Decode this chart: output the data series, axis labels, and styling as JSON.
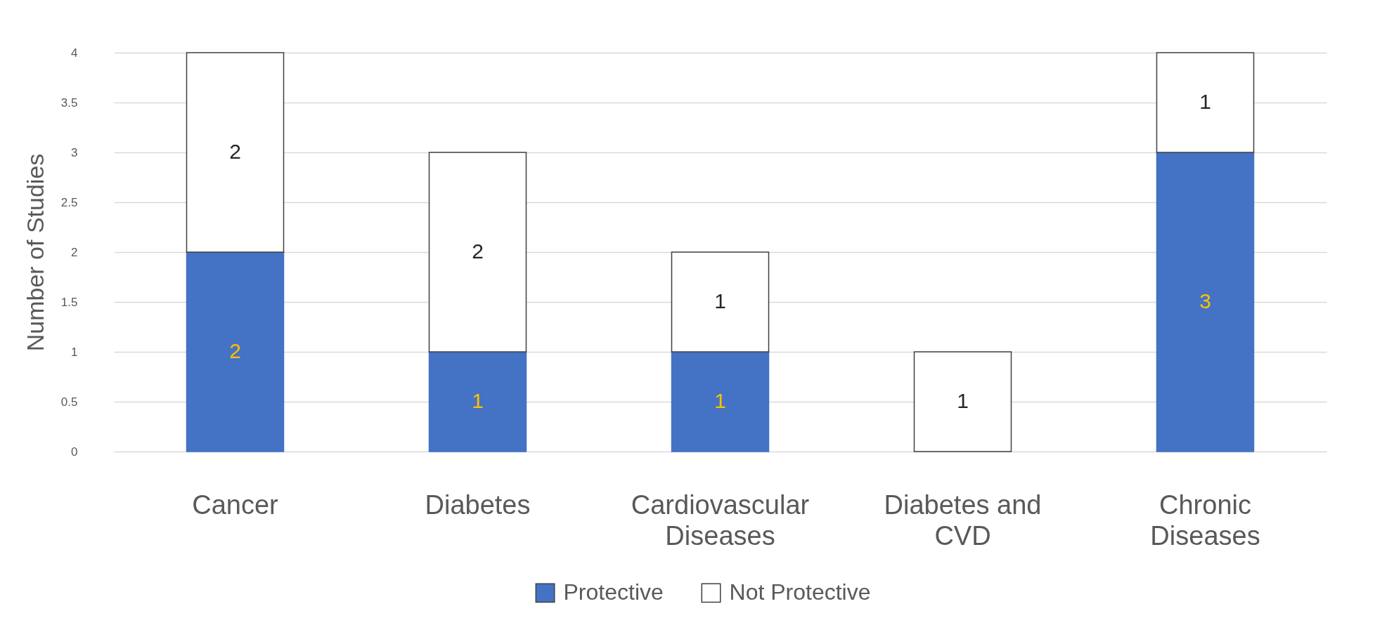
{
  "chart_data": {
    "type": "bar",
    "stacked": true,
    "ylabel": "Number of Studies",
    "categories": [
      "Cancer",
      "Diabetes",
      "Cardiovascular Diseases",
      "Diabetes and CVD",
      "Chronic Diseases"
    ],
    "series": [
      {
        "name": "Protective",
        "color": "#4472c4",
        "values": [
          2,
          1,
          1,
          0,
          3
        ],
        "value_labels": [
          "2",
          "1",
          "1",
          null,
          "3"
        ]
      },
      {
        "name": "Not Protective",
        "color": "#ffffff",
        "values": [
          2,
          2,
          1,
          1,
          1
        ],
        "value_labels": [
          "2",
          "2",
          "1",
          "1",
          "1"
        ]
      }
    ],
    "ylim": [
      0,
      4
    ],
    "yticks": [
      0,
      0.5,
      1,
      1.5,
      2,
      2.5,
      3,
      3.5,
      4
    ],
    "grid": "y",
    "legend": "bottom"
  }
}
